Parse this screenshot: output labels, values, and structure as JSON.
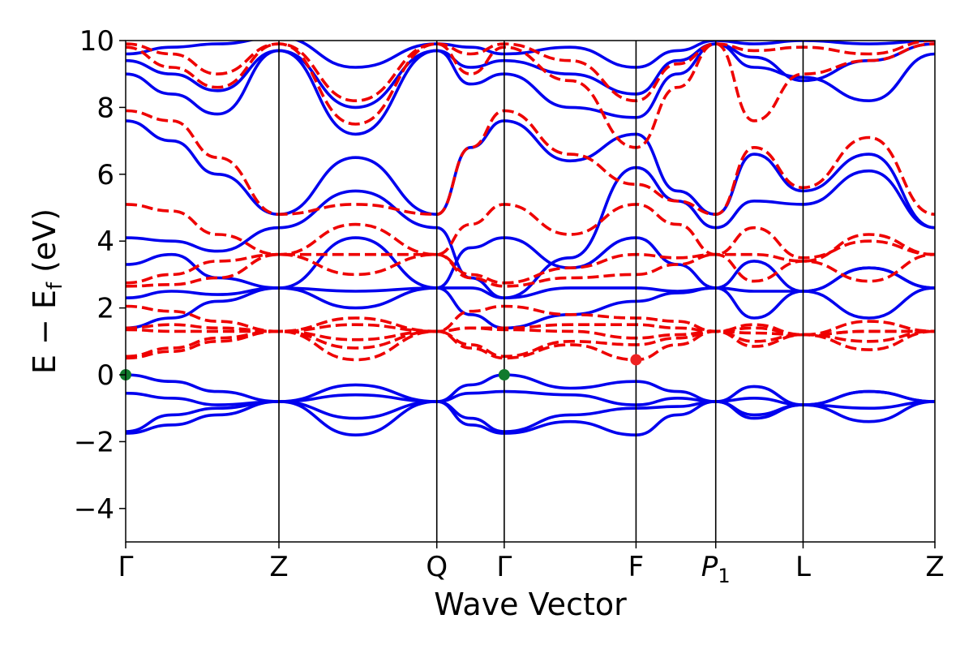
{
  "chart_data": {
    "type": "line",
    "xlabel": "Wave Vector",
    "ylabel": "E − E",
    "ylabel_sub": "f",
    "ylabel_unit": " (eV)",
    "ylim": [
      -5,
      10
    ],
    "yticks": [
      -4,
      -2,
      0,
      2,
      4,
      6,
      8,
      10
    ],
    "ytick_labels": [
      "−4",
      "−2",
      "0",
      "2",
      "4",
      "6",
      "8",
      "10"
    ],
    "xlim": [
      0,
      5.28
    ],
    "kpoints": [
      {
        "label": "Γ",
        "x": 0
      },
      {
        "label": "Z",
        "x": 1.0
      },
      {
        "label": "Q",
        "x": 2.03
      },
      {
        "label": "Γ",
        "x": 2.47
      },
      {
        "label": "F",
        "x": 3.33
      },
      {
        "label": "P",
        "sub": "1",
        "x": 3.85
      },
      {
        "label": "L",
        "x": 4.42
      },
      {
        "label": "Z",
        "x": 5.28
      }
    ],
    "series": [
      {
        "style": "solid",
        "color": "#0000ee",
        "bands": [
          {
            "x": [
              0,
              0.3,
              0.6,
              1.0,
              1.5,
              2.03,
              2.25,
              2.47,
              2.9,
              3.33,
              3.6,
              3.85,
              4.1,
              4.42,
              4.85,
              5.28
            ],
            "y": [
              -1.75,
              -1.5,
              -1.2,
              -0.8,
              -1.8,
              -0.8,
              -1.5,
              -1.75,
              -1.4,
              -1.8,
              -1.2,
              -0.8,
              -1.3,
              -0.9,
              -1.4,
              -0.8
            ]
          },
          {
            "x": [
              0,
              0.3,
              0.6,
              1.0,
              1.5,
              2.03,
              2.25,
              2.47,
              2.9,
              3.33,
              3.6,
              3.85,
              4.1,
              4.42,
              4.85,
              5.28
            ],
            "y": [
              -1.7,
              -1.2,
              -1.0,
              -0.8,
              -1.3,
              -0.8,
              -1.3,
              -1.7,
              -1.2,
              -1.0,
              -0.95,
              -0.8,
              -1.2,
              -0.9,
              -1.0,
              -0.8
            ]
          },
          {
            "x": [
              0,
              0.3,
              0.6,
              1.0,
              1.5,
              2.03,
              2.25,
              2.47,
              2.9,
              3.33,
              3.6,
              3.85,
              4.1,
              4.42,
              4.85,
              5.28
            ],
            "y": [
              -0.55,
              -0.7,
              -0.9,
              -0.8,
              -0.6,
              -0.8,
              -0.55,
              -0.5,
              -0.6,
              -0.9,
              -0.7,
              -0.8,
              -0.7,
              -0.9,
              -0.5,
              -0.8
            ]
          },
          {
            "x": [
              0,
              0.3,
              0.6,
              1.0,
              1.5,
              2.03,
              2.25,
              2.47,
              2.9,
              3.33,
              3.6,
              3.85,
              4.1,
              4.42,
              4.85,
              5.28
            ],
            "y": [
              0,
              -0.2,
              -0.5,
              -0.8,
              -0.3,
              -0.8,
              -0.3,
              0,
              -0.4,
              -0.2,
              -0.5,
              -0.8,
              -0.35,
              -0.9,
              -0.5,
              -0.8
            ]
          },
          {
            "x": [
              0,
              0.3,
              0.6,
              1.0,
              1.5,
              2.03,
              2.25,
              2.47,
              2.9,
              3.33,
              3.6,
              3.85,
              4.1,
              4.42,
              4.85,
              5.28
            ],
            "y": [
              1.4,
              1.7,
              2.2,
              2.6,
              2.0,
              2.6,
              1.8,
              1.4,
              1.8,
              2.2,
              2.45,
              2.6,
              1.7,
              2.5,
              1.7,
              2.6
            ]
          },
          {
            "x": [
              0,
              0.3,
              0.6,
              1.0,
              1.5,
              2.03,
              2.25,
              2.47,
              2.9,
              3.33,
              3.6,
              3.85,
              4.1,
              4.42,
              4.85,
              5.28
            ],
            "y": [
              2.3,
              2.5,
              2.4,
              2.6,
              2.5,
              2.6,
              2.6,
              2.3,
              2.6,
              2.6,
              2.5,
              2.6,
              2.5,
              2.5,
              3.2,
              2.6
            ]
          },
          {
            "x": [
              0,
              0.3,
              0.6,
              1.0,
              1.5,
              2.03,
              2.25,
              2.47,
              2.9,
              3.33,
              3.6,
              3.85,
              4.1,
              4.42,
              4.85,
              5.28
            ],
            "y": [
              3.3,
              3.6,
              2.9,
              2.6,
              4.1,
              2.6,
              3.8,
              4.1,
              3.2,
              4.1,
              3.3,
              2.6,
              3.4,
              2.5,
              3.2,
              2.6
            ]
          },
          {
            "x": [
              0,
              0.3,
              0.6,
              1.0,
              1.5,
              2.03,
              2.25,
              2.47,
              2.9,
              3.33,
              3.6,
              3.85,
              4.1,
              4.42,
              4.85,
              5.28
            ],
            "y": [
              4.1,
              4.0,
              3.7,
              4.4,
              5.5,
              4.4,
              2.9,
              2.3,
              3.5,
              6.2,
              5.2,
              4.4,
              5.2,
              5.1,
              6.1,
              4.4
            ]
          },
          {
            "x": [
              0,
              0.3,
              0.6,
              1.0,
              1.5,
              2.03,
              2.25,
              2.47,
              2.9,
              3.33,
              3.6,
              3.85,
              4.1,
              4.42,
              4.85,
              5.28
            ],
            "y": [
              7.6,
              7.0,
              6.0,
              4.8,
              6.5,
              4.8,
              6.8,
              7.6,
              6.4,
              7.2,
              5.5,
              4.8,
              6.6,
              5.5,
              6.6,
              4.4
            ]
          },
          {
            "x": [
              0,
              0.3,
              0.6,
              1.0,
              1.5,
              2.03,
              2.25,
              2.47,
              2.9,
              3.33,
              3.6,
              3.85,
              4.1,
              4.42,
              4.85,
              5.28
            ],
            "y": [
              9.0,
              8.4,
              7.8,
              9.7,
              7.2,
              9.7,
              8.7,
              9.0,
              8.0,
              7.7,
              9.0,
              9.9,
              9.2,
              8.9,
              8.2,
              9.6
            ]
          },
          {
            "x": [
              0,
              0.3,
              0.6,
              1.0,
              1.5,
              2.03,
              2.25,
              2.47,
              2.9,
              3.33,
              3.6,
              3.85,
              4.1,
              4.42,
              4.85,
              5.28
            ],
            "y": [
              9.4,
              9.0,
              8.5,
              9.7,
              8.0,
              9.7,
              9.2,
              9.4,
              9.0,
              8.4,
              9.4,
              9.9,
              9.5,
              8.8,
              9.4,
              9.9
            ]
          },
          {
            "x": [
              0,
              0.3,
              0.6,
              1.0,
              1.5,
              2.03,
              2.25,
              2.47,
              2.9,
              3.33,
              3.6,
              3.85,
              4.1,
              4.42,
              4.85,
              5.28
            ],
            "y": [
              9.6,
              9.8,
              9.9,
              10.1,
              9.2,
              9.9,
              9.8,
              9.6,
              9.8,
              9.2,
              9.7,
              10.0,
              9.9,
              10.0,
              9.9,
              10.0
            ]
          }
        ]
      },
      {
        "style": "dashed",
        "color": "#ee0000",
        "bands": [
          {
            "x": [
              0,
              0.3,
              0.6,
              1.0,
              1.5,
              2.03,
              2.25,
              2.47,
              2.9,
              3.33,
              3.6,
              3.85,
              4.1,
              4.42,
              4.85,
              5.28
            ],
            "y": [
              0.5,
              0.7,
              1.0,
              1.3,
              0.45,
              1.3,
              0.8,
              0.5,
              0.9,
              0.45,
              0.9,
              1.3,
              0.85,
              1.2,
              0.75,
              1.3
            ]
          },
          {
            "x": [
              0,
              0.3,
              0.6,
              1.0,
              1.5,
              2.03,
              2.25,
              2.47,
              2.9,
              3.33,
              3.6,
              3.85,
              4.1,
              4.42,
              4.85,
              5.28
            ],
            "y": [
              0.55,
              0.8,
              1.1,
              1.3,
              0.8,
              1.3,
              0.9,
              0.55,
              1.0,
              0.9,
              1.1,
              1.3,
              1.0,
              1.2,
              1.0,
              1.3
            ]
          },
          {
            "x": [
              0,
              0.3,
              0.6,
              1.0,
              1.5,
              2.03,
              2.25,
              2.47,
              2.9,
              3.33,
              3.6,
              3.85,
              4.1,
              4.42,
              4.85,
              5.28
            ],
            "y": [
              1.35,
              1.3,
              1.3,
              1.3,
              1.05,
              1.3,
              1.4,
              1.35,
              1.3,
              1.1,
              1.2,
              1.3,
              1.25,
              1.2,
              1.3,
              1.3
            ]
          },
          {
            "x": [
              0,
              0.3,
              0.6,
              1.0,
              1.5,
              2.03,
              2.25,
              2.47,
              2.9,
              3.33,
              3.6,
              3.85,
              4.1,
              4.42,
              4.85,
              5.28
            ],
            "y": [
              1.4,
              1.5,
              1.4,
              1.3,
              1.5,
              1.3,
              1.4,
              1.4,
              1.5,
              1.5,
              1.4,
              1.3,
              1.4,
              1.2,
              1.3,
              1.3
            ]
          },
          {
            "x": [
              0,
              0.3,
              0.6,
              1.0,
              1.5,
              2.03,
              2.25,
              2.47,
              2.9,
              3.33,
              3.6,
              3.85,
              4.1,
              4.42,
              4.85,
              5.28
            ],
            "y": [
              2.05,
              1.9,
              1.6,
              1.3,
              1.7,
              1.3,
              1.9,
              2.05,
              1.8,
              1.7,
              1.6,
              1.3,
              1.5,
              1.2,
              1.6,
              1.3
            ]
          },
          {
            "x": [
              0,
              0.3,
              0.6,
              1.0,
              1.5,
              2.03,
              2.25,
              2.47,
              2.9,
              3.33,
              3.6,
              3.85,
              4.1,
              4.42,
              4.85,
              5.28
            ],
            "y": [
              2.65,
              2.7,
              2.9,
              3.6,
              3.0,
              3.6,
              2.9,
              2.65,
              2.9,
              3.0,
              3.3,
              3.6,
              2.8,
              3.4,
              2.8,
              3.6
            ]
          },
          {
            "x": [
              0,
              0.3,
              0.6,
              1.0,
              1.5,
              2.03,
              2.25,
              2.47,
              2.9,
              3.33,
              3.6,
              3.85,
              4.1,
              4.42,
              4.85,
              5.28
            ],
            "y": [
              2.75,
              3.0,
              3.4,
              3.6,
              3.6,
              3.6,
              3.0,
              2.75,
              3.2,
              3.6,
              3.5,
              3.6,
              3.6,
              3.4,
              4.2,
              3.6
            ]
          },
          {
            "x": [
              0,
              0.3,
              0.6,
              1.0,
              1.5,
              2.03,
              2.25,
              2.47,
              2.9,
              3.33,
              3.6,
              3.85,
              4.1,
              4.42,
              4.85,
              5.28
            ],
            "y": [
              5.1,
              4.9,
              4.2,
              3.6,
              4.5,
              3.6,
              4.5,
              5.1,
              4.2,
              5.1,
              4.5,
              3.6,
              4.4,
              3.5,
              4.0,
              3.6
            ]
          },
          {
            "x": [
              0,
              0.3,
              0.6,
              1.0,
              1.5,
              2.03,
              2.25,
              2.47,
              2.9,
              3.33,
              3.6,
              3.85,
              4.1,
              4.42,
              4.85,
              5.28
            ],
            "y": [
              7.9,
              7.6,
              6.5,
              4.8,
              5.1,
              4.8,
              6.8,
              7.9,
              6.6,
              5.7,
              5.2,
              4.8,
              6.8,
              5.6,
              7.1,
              4.8
            ]
          },
          {
            "x": [
              0,
              0.3,
              0.6,
              1.0,
              1.5,
              2.03,
              2.25,
              2.47,
              2.9,
              3.33,
              3.6,
              3.85,
              4.1,
              4.42,
              4.85,
              5.28
            ],
            "y": [
              9.8,
              9.2,
              8.6,
              9.9,
              7.5,
              9.9,
              9.0,
              9.8,
              8.8,
              6.8,
              8.6,
              9.9,
              7.6,
              9.0,
              9.4,
              9.9
            ]
          },
          {
            "x": [
              0,
              0.3,
              0.6,
              1.0,
              1.5,
              2.03,
              2.25,
              2.47,
              2.9,
              3.33,
              3.6,
              3.85,
              4.1,
              4.42,
              4.85,
              5.28
            ],
            "y": [
              9.9,
              9.6,
              9.0,
              9.9,
              8.2,
              9.9,
              9.6,
              9.9,
              9.4,
              8.2,
              9.3,
              9.9,
              9.7,
              9.8,
              9.6,
              10.0
            ]
          }
        ]
      }
    ],
    "markers": [
      {
        "x": 0,
        "y": 0,
        "color": "#117a2d"
      },
      {
        "x": 2.47,
        "y": 0,
        "color": "#117a2d"
      },
      {
        "x": 3.33,
        "y": 0.45,
        "color": "#ee2222"
      }
    ]
  }
}
